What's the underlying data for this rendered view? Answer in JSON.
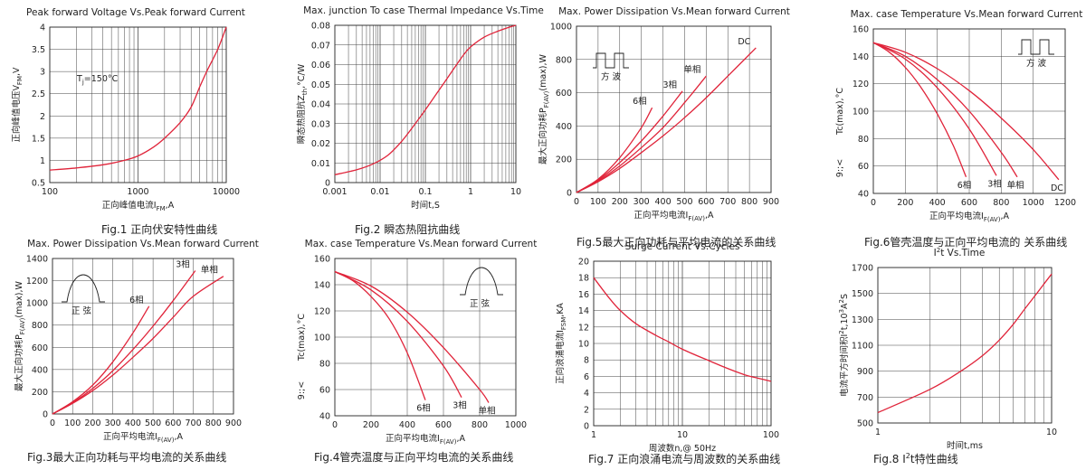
{
  "chart_data": [
    {
      "type": "line",
      "title": "Peak forward Voltage Vs.Peak forward Current",
      "xlabel": "正向峰值电流I",
      "xlabel_sub": "FM",
      "xlabel_tail": ",A",
      "ylabel": "正向峰值电压V",
      "ylabel_sub": "FM",
      "ylabel_tail": ",V",
      "caption": "Fig.1 正向伏安特性曲线",
      "xscale": "log",
      "xlim": [
        100,
        10000
      ],
      "ylim": [
        0.5,
        4
      ],
      "xticks": [
        "100",
        "1000",
        "10000"
      ],
      "yticks": [
        "0.5",
        "1",
        "1.5",
        "2",
        "2.5",
        "3",
        "3.5",
        "4"
      ],
      "annotations": [
        {
          "text": "T",
          "sub": "j",
          "tail": "=150°C"
        }
      ],
      "series": [
        {
          "x": [
            100,
            200,
            400,
            700,
            1000,
            1500,
            2000,
            3000,
            4000,
            5000,
            6000,
            8000,
            10000
          ],
          "y": [
            0.78,
            0.83,
            0.9,
            1.0,
            1.1,
            1.3,
            1.5,
            1.85,
            2.2,
            2.65,
            3.0,
            3.5,
            4.0
          ]
        }
      ]
    },
    {
      "type": "line",
      "title": "Max. junction To case Thermal Impedance Vs.Time",
      "xlabel": "时间t,S",
      "ylabel": "瞬态热阻抗Z",
      "ylabel_sub": "th",
      "ylabel_tail": ",°C/W",
      "caption": "Fig.2 瞬态热阻抗曲线",
      "xscale": "log",
      "xlim": [
        0.001,
        10
      ],
      "ylim": [
        0,
        0.08
      ],
      "xticks": [
        "0.001",
        "0.01",
        "0.1",
        "1",
        "10"
      ],
      "yticks": [
        "0",
        "0.01",
        "0.02",
        "0.03",
        "0.04",
        "0.05",
        "0.06",
        "0.07",
        "0.08"
      ],
      "series": [
        {
          "x": [
            0.001,
            0.003,
            0.007,
            0.015,
            0.03,
            0.06,
            0.1,
            0.2,
            0.4,
            0.7,
            1,
            2,
            4,
            7,
            10
          ],
          "y": [
            0.004,
            0.0065,
            0.0095,
            0.014,
            0.021,
            0.03,
            0.037,
            0.047,
            0.057,
            0.065,
            0.069,
            0.074,
            0.077,
            0.079,
            0.08
          ]
        }
      ]
    },
    {
      "type": "line",
      "title": "Max. Power Dissipation Vs.Mean forward Current",
      "xlabel": "正向平均电流I",
      "xlabel_sub": "F(AV)",
      "xlabel_tail": ",A",
      "ylabel": "最大正向功耗P",
      "ylabel_sub": "F(AV)",
      "ylabel_tail": "(max),W",
      "caption": "Fig.5最大正向功耗与平均电流的关系曲线",
      "xlim": [
        0,
        900
      ],
      "ylim": [
        0,
        1000
      ],
      "xticks": [
        "0",
        "100",
        "200",
        "300",
        "400",
        "500",
        "600",
        "700",
        "800",
        "900"
      ],
      "yticks": [
        "0",
        "200",
        "400",
        "600",
        "800",
        "1000"
      ],
      "icon": "square",
      "icon_label": "方   波",
      "series": [
        {
          "name": "6相",
          "x": [
            0,
            100,
            200,
            300,
            350
          ],
          "y": [
            0,
            80,
            210,
            390,
            510
          ]
        },
        {
          "name": "3相",
          "x": [
            0,
            100,
            200,
            300,
            400,
            490
          ],
          "y": [
            0,
            75,
            180,
            310,
            460,
            610
          ]
        },
        {
          "name": "单相",
          "x": [
            0,
            100,
            200,
            300,
            400,
            500,
            600
          ],
          "y": [
            0,
            70,
            160,
            270,
            390,
            540,
            700
          ]
        },
        {
          "name": "DC",
          "x": [
            0,
            100,
            200,
            300,
            400,
            500,
            600,
            700,
            830
          ],
          "y": [
            0,
            65,
            145,
            240,
            340,
            450,
            570,
            700,
            870
          ]
        }
      ]
    },
    {
      "type": "line",
      "title": "Max. case Temperature Vs.Mean forward Current",
      "xlabel": "正向平均电流I",
      "xlabel_sub": "F(AV)",
      "xlabel_tail": ",A",
      "ylabel": "Tc(max),°C",
      "ylabel_extra": "9:;<",
      "caption": "Fig.6管壳温度与正向平均电流的 关系曲线",
      "xlim": [
        0,
        1200
      ],
      "ylim": [
        40,
        160
      ],
      "xticks": [
        "0",
        "200",
        "400",
        "600",
        "800",
        "1000",
        "1200"
      ],
      "yticks": [
        "40",
        "60",
        "80",
        "100",
        "120",
        "140",
        "160"
      ],
      "icon": "square",
      "icon_label": "方   波",
      "series": [
        {
          "name": "6相",
          "x": [
            0,
            100,
            200,
            300,
            400,
            500,
            580
          ],
          "y": [
            150,
            143,
            132,
            117,
            98,
            75,
            52
          ]
        },
        {
          "name": "3相",
          "x": [
            0,
            200,
            400,
            600,
            770
          ],
          "y": [
            150,
            138,
            117,
            87,
            53
          ]
        },
        {
          "name": "单相",
          "x": [
            0,
            200,
            400,
            600,
            800,
            900
          ],
          "y": [
            150,
            140,
            123,
            100,
            70,
            52
          ]
        },
        {
          "name": "DC",
          "x": [
            0,
            200,
            400,
            600,
            800,
            1000,
            1160
          ],
          "y": [
            150,
            143,
            131,
            115,
            95,
            72,
            50
          ]
        }
      ]
    },
    {
      "type": "line",
      "title": "Max. Power Dissipation Vs.Mean forward Current",
      "xlabel": "正向平均电流I",
      "xlabel_sub": "F(AV)",
      "xlabel_tail": ",A",
      "ylabel": "最大正向功耗P",
      "ylabel_sub": "F(AV)",
      "ylabel_tail": "(max),W",
      "caption": "Fig.3最大正向功耗与平均电流的关系曲线",
      "xlim": [
        0,
        900
      ],
      "ylim": [
        0,
        1400
      ],
      "xticks": [
        "0",
        "100",
        "200",
        "300",
        "400",
        "500",
        "600",
        "700",
        "800",
        "900"
      ],
      "yticks": [
        "0",
        "200",
        "400",
        "600",
        "800",
        "1000",
        "1200",
        "1400"
      ],
      "icon": "sine",
      "icon_label": "正   弦",
      "series": [
        {
          "name": "6相",
          "x": [
            0,
            100,
            200,
            300,
            400,
            480
          ],
          "y": [
            0,
            110,
            260,
            470,
            730,
            970
          ]
        },
        {
          "name": "3相",
          "x": [
            0,
            100,
            200,
            300,
            400,
            500,
            600,
            710
          ],
          "y": [
            0,
            100,
            230,
            390,
            580,
            790,
            1020,
            1290
          ]
        },
        {
          "name": "单相",
          "x": [
            0,
            100,
            200,
            300,
            400,
            500,
            600,
            700,
            850
          ],
          "y": [
            0,
            95,
            210,
            350,
            510,
            680,
            870,
            1060,
            1240
          ]
        }
      ]
    },
    {
      "type": "line",
      "title": "Max. case Temperature Vs.Mean forward Current",
      "xlabel": "正向平均电流I",
      "xlabel_sub": "F(AV)",
      "xlabel_tail": ",A",
      "ylabel": "Tc(max),°C",
      "ylabel_extra": "9:;<",
      "caption": "Fig.4管壳温度与正向平均电流的关系曲线",
      "xlim": [
        0,
        1000
      ],
      "ylim": [
        40,
        160
      ],
      "xticks": [
        "0",
        "200",
        "400",
        "600",
        "800",
        "1000"
      ],
      "yticks": [
        "40",
        "60",
        "80",
        "100",
        "120",
        "140",
        "160"
      ],
      "icon": "sine",
      "icon_label": "正   弦",
      "series": [
        {
          "name": "6相",
          "x": [
            0,
            100,
            200,
            300,
            400,
            500
          ],
          "y": [
            150,
            143,
            131,
            114,
            88,
            52
          ]
        },
        {
          "name": "3相",
          "x": [
            0,
            200,
            400,
            600,
            700
          ],
          "y": [
            150,
            136,
            112,
            78,
            54
          ]
        },
        {
          "name": "单相",
          "x": [
            0,
            200,
            400,
            600,
            800,
            850
          ],
          "y": [
            150,
            139,
            119,
            92,
            60,
            50
          ]
        }
      ]
    },
    {
      "type": "line",
      "title": "Surge Current Vs.Cycles",
      "xlabel": "周波数n,@ 50Hz",
      "ylabel": "正向浪涌电流I",
      "ylabel_sub": "FSM",
      "ylabel_tail": ",KA",
      "caption": "Fig.7 正向浪涌电流与周波数的关系曲线",
      "xscale": "log",
      "xlim": [
        1,
        100
      ],
      "ylim": [
        0,
        20
      ],
      "xticks": [
        "1",
        "10",
        "100"
      ],
      "yticks": [
        "0",
        "2",
        "4",
        "6",
        "8",
        "10",
        "12",
        "14",
        "16",
        "18",
        "20"
      ],
      "series": [
        {
          "x": [
            1,
            1.5,
            2,
            3,
            5,
            7,
            10,
            20,
            30,
            50,
            70,
            100
          ],
          "y": [
            18,
            15.5,
            14,
            12.4,
            11,
            10.2,
            9.3,
            7.9,
            7.1,
            6.2,
            5.8,
            5.4
          ]
        }
      ]
    },
    {
      "type": "line",
      "title": "I",
      "title_sup": "2",
      "title_tail": "t  Vs.Time",
      "xlabel": "时间t,ms",
      "ylabel": "电流平方时间积I",
      "ylabel_sup": "2",
      "ylabel_tail": "t,10",
      "ylabel_sup2": "3",
      "ylabel_tail2": "A",
      "ylabel_sup3": "2",
      "ylabel_tail3": "S",
      "caption": "Fig.8 I",
      "caption_sup": "2",
      "caption_tail": "t特性曲线",
      "xscale": "log",
      "xlim": [
        1,
        10
      ],
      "ylim": [
        500,
        1700
      ],
      "xticks": [
        "1",
        "10"
      ],
      "yticks": [
        "500",
        "700",
        "900",
        "1100",
        "1300",
        "1500",
        "1700"
      ],
      "series": [
        {
          "x": [
            1,
            2,
            3,
            4,
            5,
            6,
            7,
            8,
            9,
            10
          ],
          "y": [
            580,
            760,
            900,
            1020,
            1140,
            1260,
            1380,
            1480,
            1570,
            1650
          ]
        }
      ]
    }
  ]
}
